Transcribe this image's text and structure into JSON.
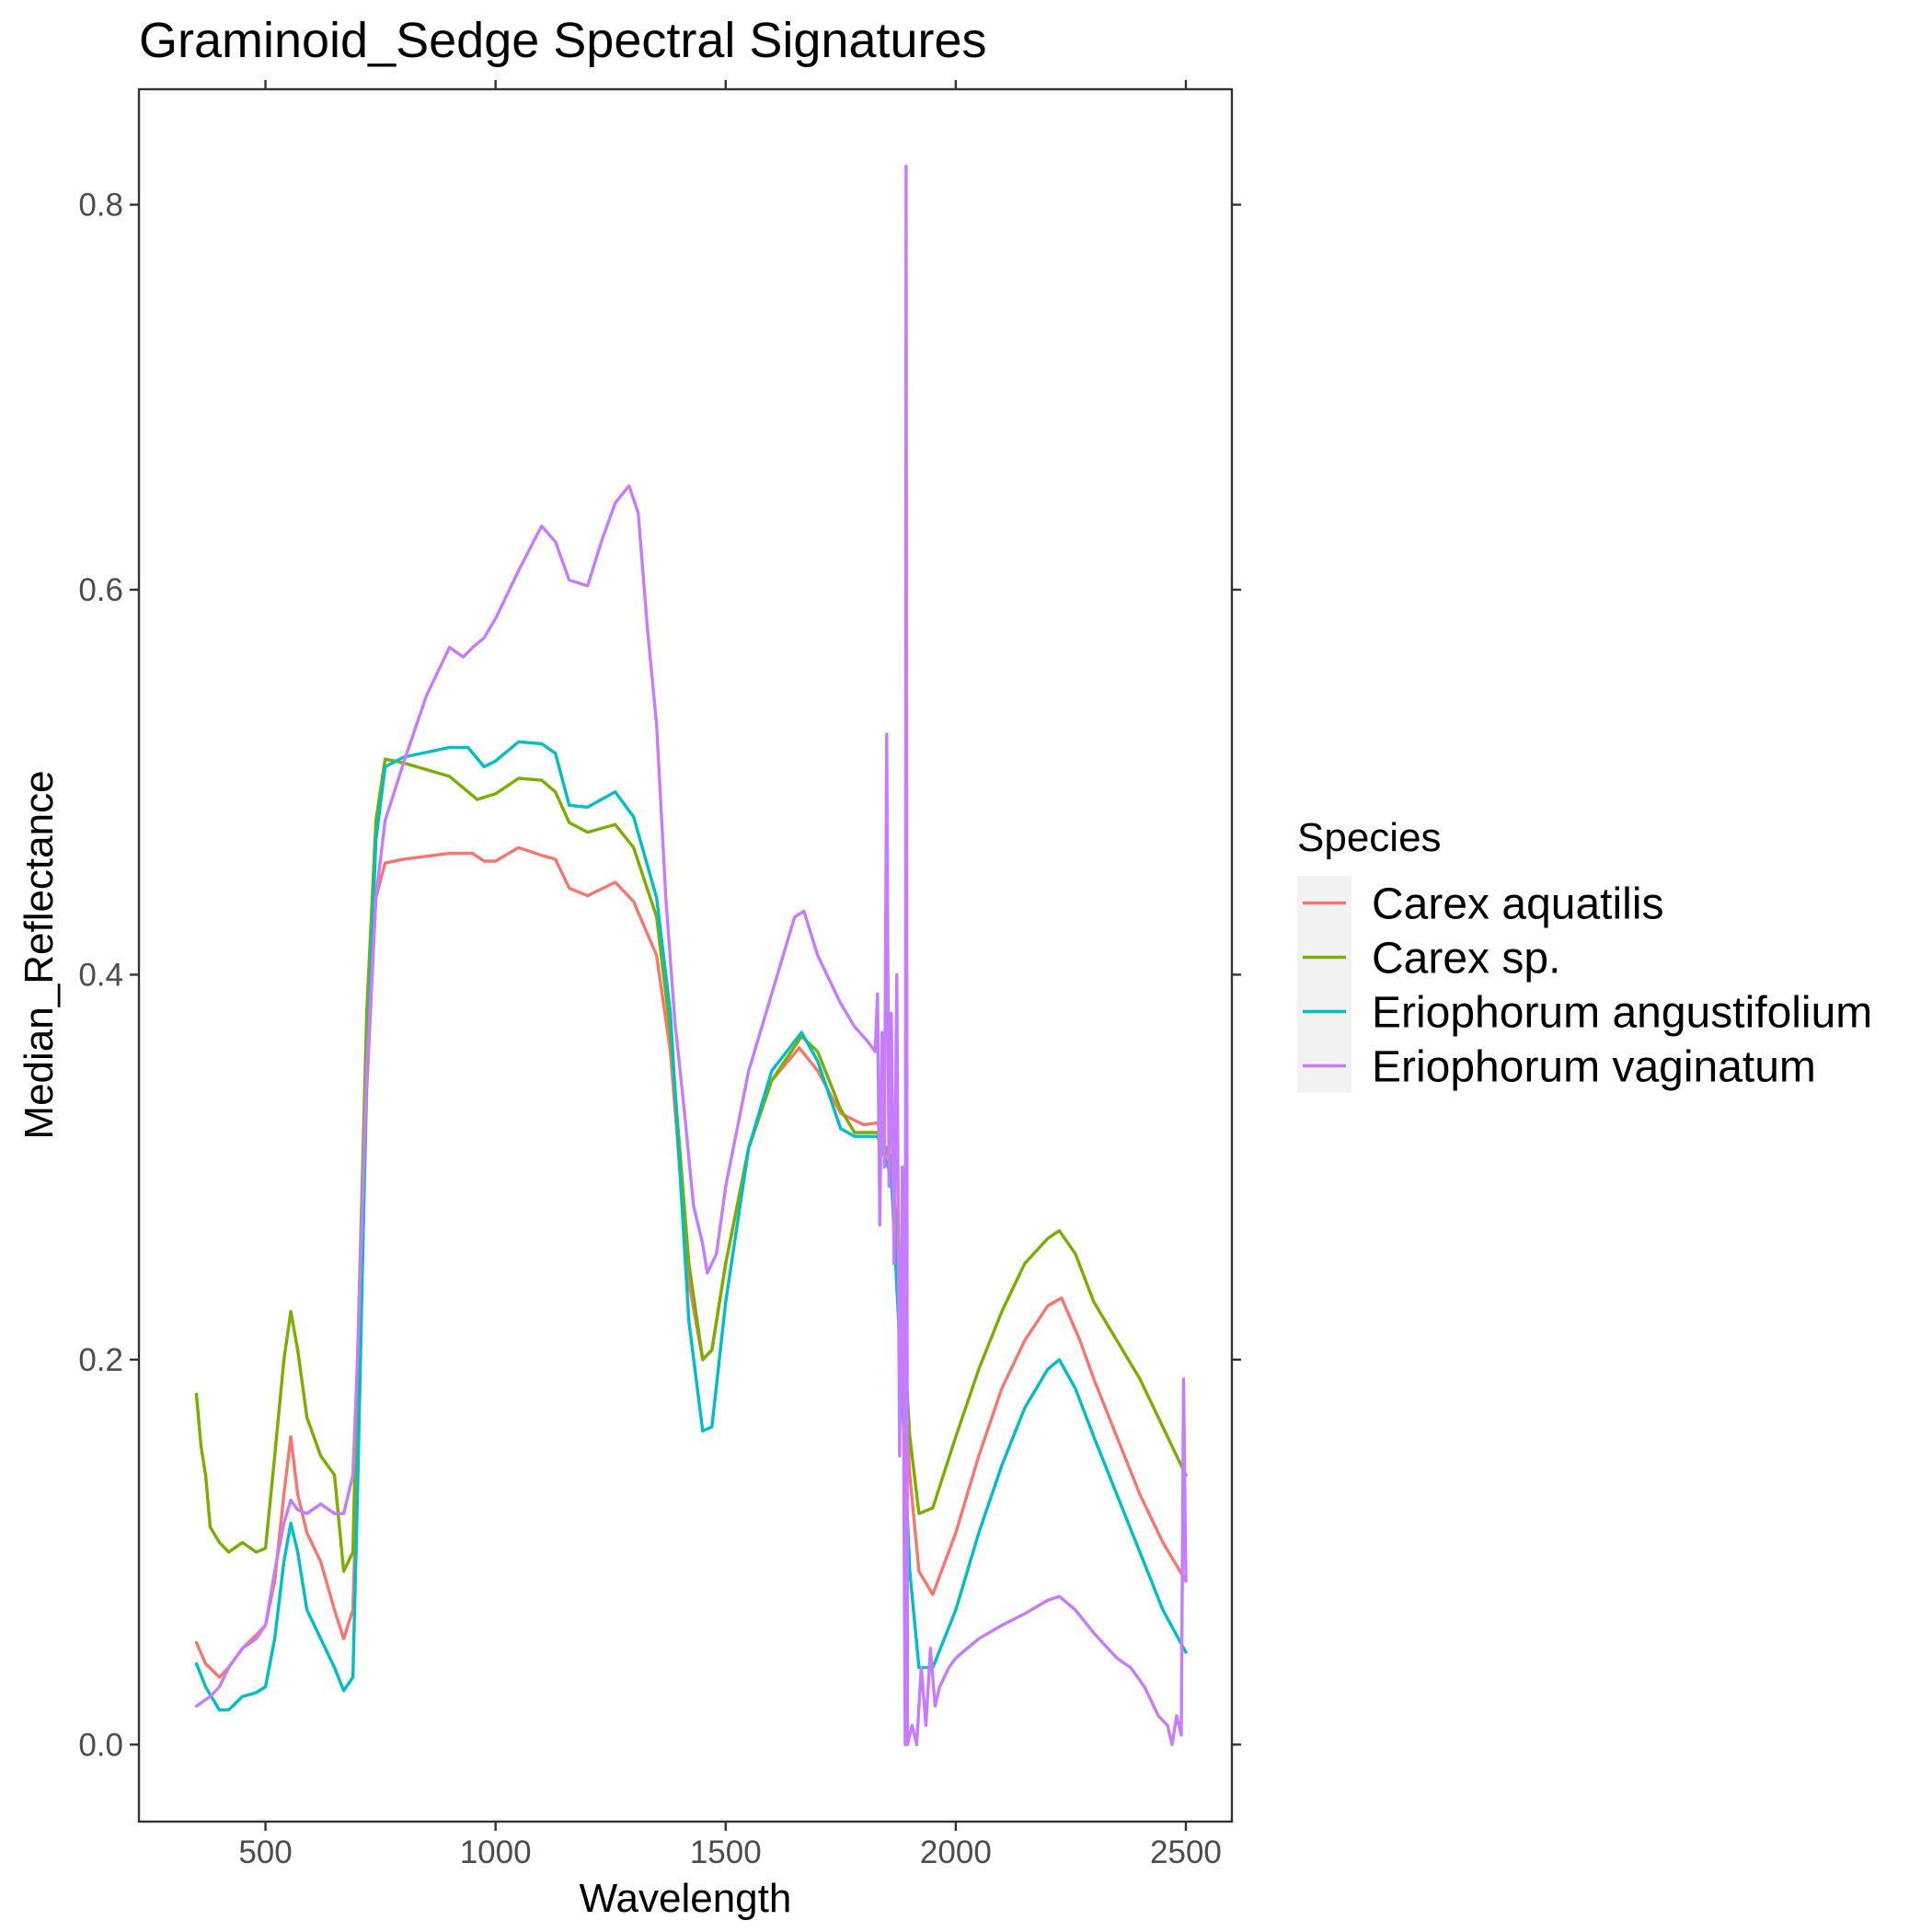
{
  "chart_data": {
    "type": "line",
    "title": "Graminoid_Sedge Spectral Signatures",
    "xlabel": "Wavelength",
    "ylabel": "Median_Reflectance",
    "xlim": [
      225,
      2600
    ],
    "ylim": [
      -0.04,
      0.86
    ],
    "xticks": [
      500,
      1000,
      1500,
      2000,
      2500
    ],
    "xtick_labels": [
      "500",
      "1000",
      "1500",
      "2000",
      "2500"
    ],
    "yticks": [
      0.0,
      0.2,
      0.4,
      0.6,
      0.8
    ],
    "ytick_labels": [
      "0.0",
      "0.2",
      "0.4",
      "0.6",
      "0.8"
    ],
    "grid": false,
    "legend": {
      "title": "Species",
      "position": "right"
    },
    "series": [
      {
        "name": "Carex aquatilis",
        "color": "#F8766D",
        "points": [
          [
            350,
            0.053
          ],
          [
            370,
            0.042
          ],
          [
            400,
            0.035
          ],
          [
            420,
            0.04
          ],
          [
            450,
            0.05
          ],
          [
            480,
            0.057
          ],
          [
            500,
            0.062
          ],
          [
            520,
            0.085
          ],
          [
            540,
            0.13
          ],
          [
            555,
            0.16
          ],
          [
            570,
            0.13
          ],
          [
            590,
            0.11
          ],
          [
            620,
            0.095
          ],
          [
            650,
            0.07
          ],
          [
            670,
            0.055
          ],
          [
            690,
            0.07
          ],
          [
            700,
            0.15
          ],
          [
            720,
            0.34
          ],
          [
            740,
            0.44
          ],
          [
            760,
            0.458
          ],
          [
            800,
            0.46
          ],
          [
            900,
            0.463
          ],
          [
            950,
            0.463
          ],
          [
            975,
            0.459
          ],
          [
            1000,
            0.459
          ],
          [
            1050,
            0.466
          ],
          [
            1100,
            0.462
          ],
          [
            1130,
            0.46
          ],
          [
            1160,
            0.445
          ],
          [
            1200,
            0.441
          ],
          [
            1260,
            0.448
          ],
          [
            1300,
            0.438
          ],
          [
            1350,
            0.41
          ],
          [
            1380,
            0.36
          ],
          [
            1420,
            0.24
          ],
          [
            1450,
            0.2
          ],
          [
            1470,
            0.205
          ],
          [
            1500,
            0.25
          ],
          [
            1550,
            0.31
          ],
          [
            1600,
            0.345
          ],
          [
            1660,
            0.362
          ],
          [
            1700,
            0.35
          ],
          [
            1750,
            0.328
          ],
          [
            1800,
            0.322
          ],
          [
            1830,
            0.323
          ],
          [
            1860,
            0.3
          ],
          [
            1880,
            0.23
          ],
          [
            1900,
            0.14
          ],
          [
            1920,
            0.09
          ],
          [
            1950,
            0.078
          ],
          [
            2000,
            0.11
          ],
          [
            2050,
            0.15
          ],
          [
            2100,
            0.185
          ],
          [
            2150,
            0.21
          ],
          [
            2200,
            0.228
          ],
          [
            2230,
            0.232
          ],
          [
            2270,
            0.21
          ],
          [
            2300,
            0.19
          ],
          [
            2350,
            0.16
          ],
          [
            2400,
            0.13
          ],
          [
            2450,
            0.105
          ],
          [
            2500,
            0.085
          ]
        ]
      },
      {
        "name": "Carex sp.",
        "color": "#7CAE00",
        "points": [
          [
            350,
            0.182
          ],
          [
            360,
            0.155
          ],
          [
            370,
            0.14
          ],
          [
            380,
            0.113
          ],
          [
            400,
            0.105
          ],
          [
            420,
            0.1
          ],
          [
            450,
            0.105
          ],
          [
            480,
            0.1
          ],
          [
            500,
            0.102
          ],
          [
            520,
            0.15
          ],
          [
            540,
            0.2
          ],
          [
            555,
            0.225
          ],
          [
            570,
            0.205
          ],
          [
            590,
            0.17
          ],
          [
            620,
            0.15
          ],
          [
            650,
            0.14
          ],
          [
            670,
            0.09
          ],
          [
            690,
            0.1
          ],
          [
            700,
            0.2
          ],
          [
            720,
            0.38
          ],
          [
            740,
            0.48
          ],
          [
            760,
            0.512
          ],
          [
            800,
            0.51
          ],
          [
            900,
            0.503
          ],
          [
            960,
            0.491
          ],
          [
            1000,
            0.494
          ],
          [
            1050,
            0.502
          ],
          [
            1100,
            0.501
          ],
          [
            1130,
            0.495
          ],
          [
            1160,
            0.479
          ],
          [
            1200,
            0.474
          ],
          [
            1260,
            0.478
          ],
          [
            1300,
            0.466
          ],
          [
            1350,
            0.43
          ],
          [
            1380,
            0.37
          ],
          [
            1420,
            0.25
          ],
          [
            1450,
            0.2
          ],
          [
            1470,
            0.205
          ],
          [
            1500,
            0.25
          ],
          [
            1550,
            0.31
          ],
          [
            1600,
            0.345
          ],
          [
            1665,
            0.368
          ],
          [
            1700,
            0.36
          ],
          [
            1750,
            0.33
          ],
          [
            1780,
            0.318
          ],
          [
            1830,
            0.318
          ],
          [
            1860,
            0.305
          ],
          [
            1880,
            0.24
          ],
          [
            1900,
            0.16
          ],
          [
            1920,
            0.12
          ],
          [
            1950,
            0.123
          ],
          [
            2000,
            0.16
          ],
          [
            2050,
            0.195
          ],
          [
            2100,
            0.225
          ],
          [
            2150,
            0.25
          ],
          [
            2200,
            0.263
          ],
          [
            2225,
            0.267
          ],
          [
            2260,
            0.255
          ],
          [
            2300,
            0.23
          ],
          [
            2350,
            0.21
          ],
          [
            2400,
            0.19
          ],
          [
            2450,
            0.165
          ],
          [
            2500,
            0.14
          ]
        ]
      },
      {
        "name": "Eriophorum angustifolium",
        "color": "#00BFC4",
        "points": [
          [
            350,
            0.042
          ],
          [
            370,
            0.03
          ],
          [
            400,
            0.018
          ],
          [
            420,
            0.018
          ],
          [
            450,
            0.025
          ],
          [
            480,
            0.027
          ],
          [
            500,
            0.03
          ],
          [
            520,
            0.055
          ],
          [
            540,
            0.095
          ],
          [
            555,
            0.115
          ],
          [
            570,
            0.1
          ],
          [
            590,
            0.07
          ],
          [
            620,
            0.055
          ],
          [
            650,
            0.04
          ],
          [
            670,
            0.028
          ],
          [
            690,
            0.035
          ],
          [
            700,
            0.13
          ],
          [
            720,
            0.35
          ],
          [
            740,
            0.47
          ],
          [
            760,
            0.508
          ],
          [
            800,
            0.513
          ],
          [
            900,
            0.518
          ],
          [
            940,
            0.518
          ],
          [
            975,
            0.508
          ],
          [
            1000,
            0.511
          ],
          [
            1050,
            0.521
          ],
          [
            1100,
            0.52
          ],
          [
            1130,
            0.515
          ],
          [
            1160,
            0.488
          ],
          [
            1200,
            0.487
          ],
          [
            1260,
            0.495
          ],
          [
            1300,
            0.482
          ],
          [
            1350,
            0.44
          ],
          [
            1380,
            0.38
          ],
          [
            1420,
            0.22
          ],
          [
            1450,
            0.163
          ],
          [
            1470,
            0.165
          ],
          [
            1500,
            0.23
          ],
          [
            1550,
            0.31
          ],
          [
            1600,
            0.35
          ],
          [
            1665,
            0.37
          ],
          [
            1700,
            0.355
          ],
          [
            1750,
            0.32
          ],
          [
            1780,
            0.316
          ],
          [
            1830,
            0.316
          ],
          [
            1860,
            0.295
          ],
          [
            1880,
            0.2
          ],
          [
            1900,
            0.09
          ],
          [
            1920,
            0.04
          ],
          [
            1950,
            0.04
          ],
          [
            2000,
            0.07
          ],
          [
            2050,
            0.11
          ],
          [
            2100,
            0.145
          ],
          [
            2150,
            0.175
          ],
          [
            2200,
            0.195
          ],
          [
            2225,
            0.2
          ],
          [
            2260,
            0.185
          ],
          [
            2300,
            0.16
          ],
          [
            2350,
            0.13
          ],
          [
            2400,
            0.1
          ],
          [
            2450,
            0.07
          ],
          [
            2500,
            0.048
          ]
        ]
      },
      {
        "name": "Eriophorum vaginatum",
        "color": "#C77CFF",
        "points": [
          [
            350,
            0.02
          ],
          [
            380,
            0.025
          ],
          [
            400,
            0.03
          ],
          [
            420,
            0.04
          ],
          [
            450,
            0.05
          ],
          [
            480,
            0.055
          ],
          [
            500,
            0.062
          ],
          [
            520,
            0.09
          ],
          [
            540,
            0.115
          ],
          [
            555,
            0.127
          ],
          [
            570,
            0.122
          ],
          [
            590,
            0.12
          ],
          [
            620,
            0.125
          ],
          [
            650,
            0.12
          ],
          [
            670,
            0.12
          ],
          [
            690,
            0.14
          ],
          [
            700,
            0.2
          ],
          [
            720,
            0.35
          ],
          [
            740,
            0.44
          ],
          [
            760,
            0.48
          ],
          [
            800,
            0.51
          ],
          [
            850,
            0.545
          ],
          [
            900,
            0.57
          ],
          [
            930,
            0.565
          ],
          [
            950,
            0.57
          ],
          [
            975,
            0.575
          ],
          [
            1000,
            0.585
          ],
          [
            1050,
            0.61
          ],
          [
            1100,
            0.633
          ],
          [
            1130,
            0.625
          ],
          [
            1160,
            0.605
          ],
          [
            1200,
            0.602
          ],
          [
            1230,
            0.625
          ],
          [
            1260,
            0.645
          ],
          [
            1290,
            0.654
          ],
          [
            1310,
            0.64
          ],
          [
            1330,
            0.58
          ],
          [
            1350,
            0.53
          ],
          [
            1370,
            0.44
          ],
          [
            1390,
            0.375
          ],
          [
            1410,
            0.33
          ],
          [
            1430,
            0.28
          ],
          [
            1450,
            0.26
          ],
          [
            1460,
            0.245
          ],
          [
            1480,
            0.255
          ],
          [
            1500,
            0.29
          ],
          [
            1550,
            0.35
          ],
          [
            1600,
            0.39
          ],
          [
            1650,
            0.43
          ],
          [
            1670,
            0.433
          ],
          [
            1700,
            0.41
          ],
          [
            1750,
            0.385
          ],
          [
            1780,
            0.373
          ],
          [
            1810,
            0.365
          ],
          [
            1825,
            0.36
          ],
          [
            1830,
            0.39
          ],
          [
            1835,
            0.27
          ],
          [
            1840,
            0.37
          ],
          [
            1845,
            0.3
          ],
          [
            1850,
            0.525
          ],
          [
            1855,
            0.29
          ],
          [
            1860,
            0.38
          ],
          [
            1866,
            0.25
          ],
          [
            1872,
            0.4
          ],
          [
            1878,
            0.15
          ],
          [
            1884,
            0.3
          ],
          [
            1890,
            0.0
          ],
          [
            1892,
            0.82
          ],
          [
            1895,
            0.0
          ],
          [
            1905,
            0.01
          ],
          [
            1915,
            0.0
          ],
          [
            1925,
            0.04
          ],
          [
            1935,
            0.01
          ],
          [
            1945,
            0.05
          ],
          [
            1955,
            0.02
          ],
          [
            1965,
            0.03
          ],
          [
            1985,
            0.04
          ],
          [
            2000,
            0.045
          ],
          [
            2050,
            0.055
          ],
          [
            2100,
            0.062
          ],
          [
            2150,
            0.068
          ],
          [
            2200,
            0.075
          ],
          [
            2225,
            0.077
          ],
          [
            2260,
            0.07
          ],
          [
            2300,
            0.058
          ],
          [
            2350,
            0.045
          ],
          [
            2380,
            0.04
          ],
          [
            2410,
            0.03
          ],
          [
            2440,
            0.015
          ],
          [
            2460,
            0.01
          ],
          [
            2470,
            0.0
          ],
          [
            2480,
            0.015
          ],
          [
            2490,
            0.005
          ],
          [
            2495,
            0.19
          ],
          [
            2500,
            0.085
          ]
        ]
      }
    ]
  }
}
